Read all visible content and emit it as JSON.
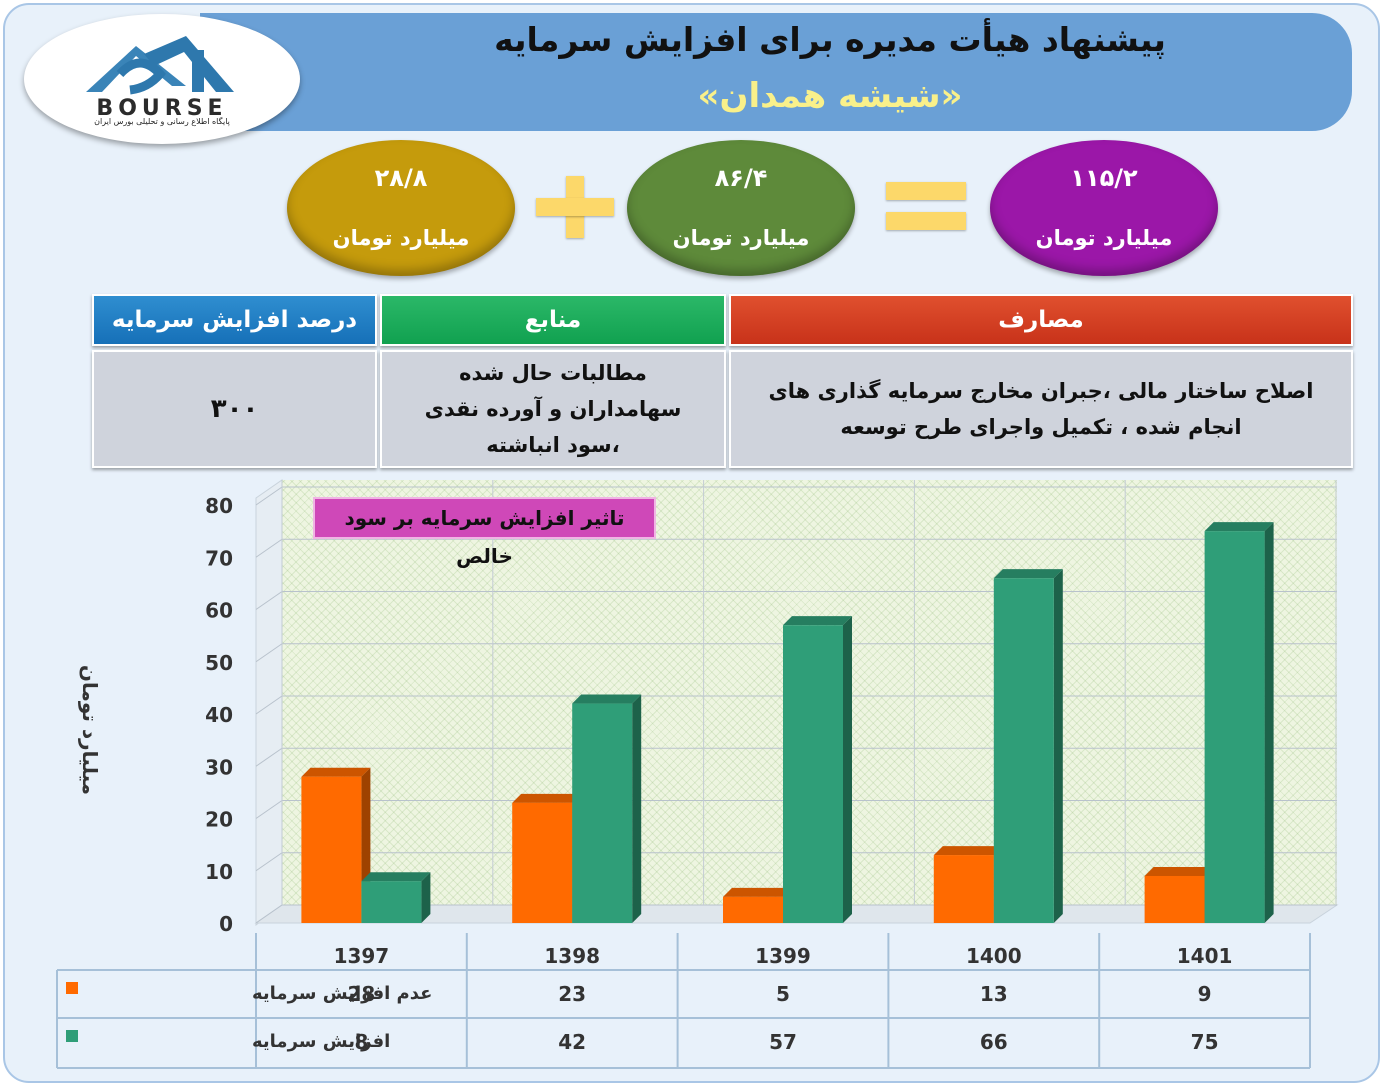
{
  "header": {
    "title": "پیشنهاد هیأت مدیره برای افزایش سرمایه",
    "subtitle": "«شیشه همدان»",
    "logo_text": "BOURSE",
    "logo_subtext": "پایگاه اطلاع رسانی و تحلیلی بورس ایران"
  },
  "equation": {
    "total": {
      "value": "۱۱۵/۲",
      "unit": "میلیارد تومان",
      "color": "#9b17a8"
    },
    "part_a": {
      "value": "۸۶/۴",
      "unit": "میلیارد تومان",
      "color": "#5e8a3a"
    },
    "part_b": {
      "value": "۲۸/۸",
      "unit": "میلیارد تومان",
      "color": "#c59b0c"
    }
  },
  "table": {
    "headers": {
      "expenses": "مصارف",
      "sources": "منابع",
      "percent": "درصد افزایش سرمایه"
    },
    "values": {
      "expenses": "اصلاح ساختار مالی ،جبران مخارج سرمایه گذاری های انجام شده ، تکمیل واجرای طرح توسعه",
      "sources": "مطالبات حال شده سهامداران و آورده نقدی ،سود انباشته",
      "percent": "۳۰۰"
    },
    "colors": {
      "expenses": "#c8321a",
      "sources": "#11a150",
      "percent": "#1670b8"
    }
  },
  "chart_data": {
    "type": "bar",
    "title": "تاثیر افزایش سرمایه بر سود خالص",
    "ylabel": "میلیارد تومان",
    "xlabel": "",
    "categories": [
      "1397",
      "1398",
      "1399",
      "1400",
      "1401"
    ],
    "series": [
      {
        "name": "عدم افزایش سرمایه",
        "values": [
          28,
          23,
          5,
          13,
          9
        ],
        "color": "#ff6a00"
      },
      {
        "name": "افزایش سرمایه",
        "values": [
          8,
          42,
          57,
          66,
          75
        ],
        "color": "#2f9e78"
      }
    ],
    "ylim": [
      0,
      80
    ],
    "yticks": [
      0,
      10,
      20,
      30,
      40,
      50,
      60,
      70,
      80
    ],
    "grid": true,
    "legend": "data-table-left"
  }
}
